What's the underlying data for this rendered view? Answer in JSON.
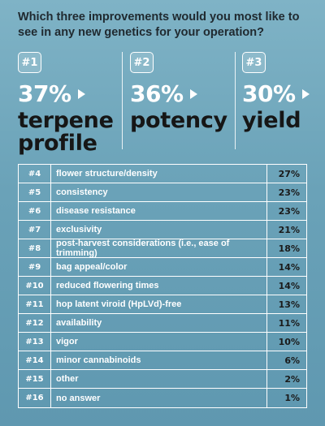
{
  "question": "Which three improvements would you most like to see in any new genetics for your operation?",
  "top3": [
    {
      "rank": "#1",
      "percent": "37%",
      "label_line1": "terpene",
      "label_line2": "profile"
    },
    {
      "rank": "#2",
      "percent": "36%",
      "label_line1": "potency",
      "label_line2": ""
    },
    {
      "rank": "#3",
      "percent": "30%",
      "label_line1": "yield",
      "label_line2": ""
    }
  ],
  "chart_data": {
    "type": "table",
    "title": "Which three improvements would you most like to see in any new genetics for your operation?",
    "top_categories": [
      "terpene profile",
      "potency",
      "yield"
    ],
    "top_values": [
      37,
      36,
      30
    ],
    "rows": [
      {
        "rank": "#4",
        "label": "flower structure/density",
        "value": "27%"
      },
      {
        "rank": "#5",
        "label": "consistency",
        "value": "23%"
      },
      {
        "rank": "#6",
        "label": "disease resistance",
        "value": "23%"
      },
      {
        "rank": "#7",
        "label": "exclusivity",
        "value": "21%"
      },
      {
        "rank": "#8",
        "label": "post-harvest considerations (i.e., ease of trimming)",
        "value": "18%"
      },
      {
        "rank": "#9",
        "label": "bag appeal/color",
        "value": "14%"
      },
      {
        "rank": "#10",
        "label": "reduced flowering times",
        "value": "14%"
      },
      {
        "rank": "#11",
        "label": "hop latent viroid (HpLVd)-free",
        "value": "13%"
      },
      {
        "rank": "#12",
        "label": "availability",
        "value": "11%"
      },
      {
        "rank": "#13",
        "label": "vigor",
        "value": "10%"
      },
      {
        "rank": "#14",
        "label": "minor cannabinoids",
        "value": "6%"
      },
      {
        "rank": "#15",
        "label": "other",
        "value": "2%"
      },
      {
        "rank": "#16",
        "label": "no answer",
        "value": "1%"
      }
    ]
  },
  "colors": {
    "background": "#6aa2b8",
    "accent": "#ffffff",
    "text_dark": "#161616"
  }
}
